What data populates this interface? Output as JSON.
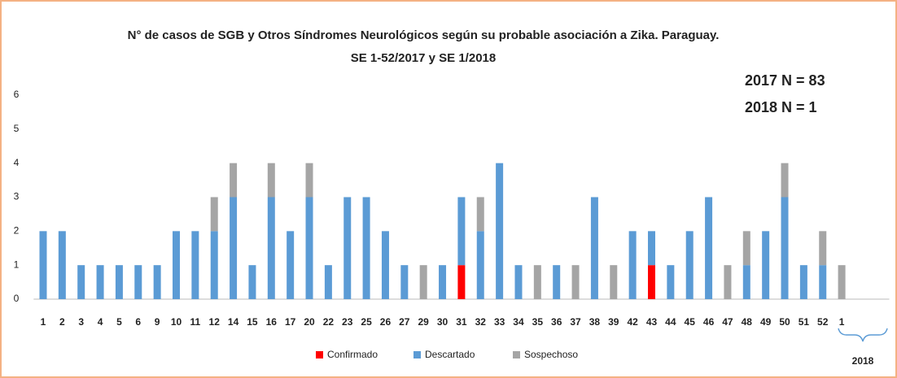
{
  "chart_data": {
    "type": "bar",
    "stacked": true,
    "title": "N° de casos de SGB y Otros Síndromes Neurológicos según su probable asociación a Zika. Paraguay.",
    "subtitle": "SE 1-52/2017 y SE 1/2018",
    "annotations": [
      "2017 N = 83",
      "2018 N = 1"
    ],
    "bracket_label": "2018",
    "categories": [
      "1",
      "2",
      "3",
      "4",
      "5",
      "6",
      "9",
      "10",
      "11",
      "12",
      "14",
      "15",
      "16",
      "17",
      "20",
      "22",
      "23",
      "25",
      "26",
      "27",
      "29",
      "30",
      "31",
      "32",
      "33",
      "34",
      "35",
      "36",
      "37",
      "38",
      "39",
      "42",
      "43",
      "44",
      "45",
      "46",
      "47",
      "48",
      "49",
      "50",
      "51",
      "52",
      "1"
    ],
    "series": [
      {
        "name": "Confirmado",
        "color": "#ff0000",
        "values": [
          0,
          0,
          0,
          0,
          0,
          0,
          0,
          0,
          0,
          0,
          0,
          0,
          0,
          0,
          0,
          0,
          0,
          0,
          0,
          0,
          0,
          0,
          1,
          0,
          0,
          0,
          0,
          0,
          0,
          0,
          0,
          0,
          1,
          0,
          0,
          0,
          0,
          0,
          0,
          0,
          0,
          0,
          0
        ]
      },
      {
        "name": "Descartado",
        "color": "#5b9bd5",
        "values": [
          2,
          2,
          1,
          1,
          1,
          1,
          1,
          2,
          2,
          2,
          3,
          1,
          3,
          2,
          3,
          1,
          3,
          3,
          2,
          1,
          0,
          1,
          2,
          2,
          4,
          1,
          0,
          1,
          0,
          3,
          0,
          2,
          1,
          1,
          2,
          3,
          0,
          1,
          2,
          3,
          1,
          1,
          0
        ]
      },
      {
        "name": "Sospechoso",
        "color": "#a5a5a5",
        "values": [
          0,
          0,
          0,
          0,
          0,
          0,
          0,
          0,
          0,
          1,
          1,
          0,
          1,
          0,
          1,
          0,
          0,
          0,
          0,
          0,
          1,
          0,
          0,
          1,
          0,
          0,
          1,
          0,
          1,
          0,
          1,
          0,
          0,
          0,
          0,
          0,
          1,
          1,
          0,
          1,
          0,
          1,
          1
        ]
      }
    ],
    "ylim": [
      0,
      6
    ],
    "yticks": [
      0,
      1,
      2,
      3,
      4,
      5,
      6
    ],
    "grid": false
  }
}
